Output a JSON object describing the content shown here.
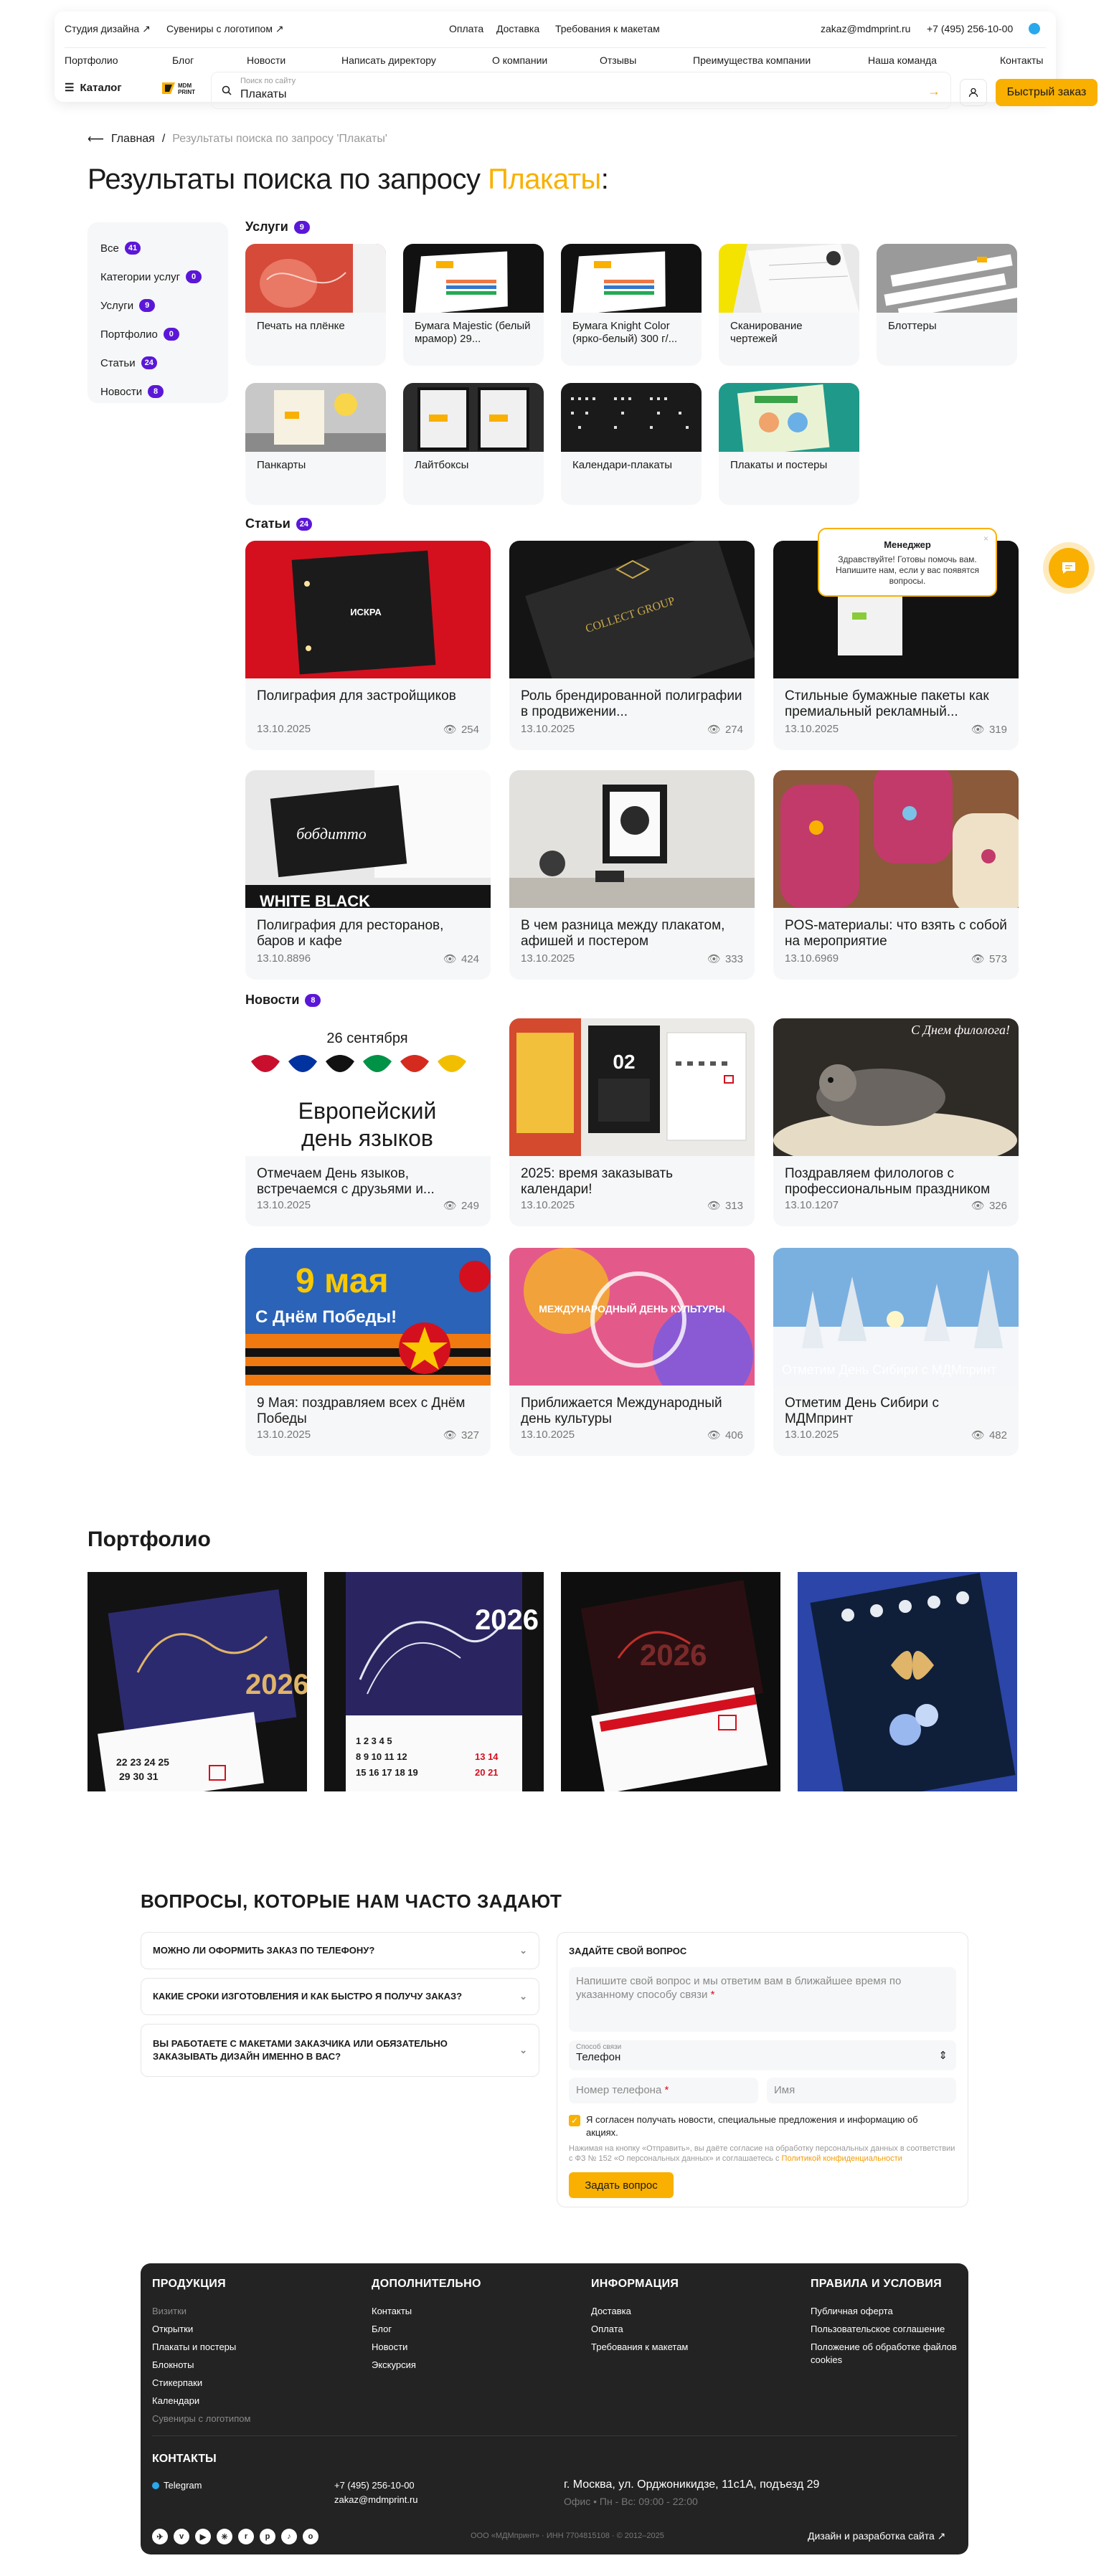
{
  "topbar": {
    "left_links": [
      "Студия дизайна ↗",
      "Сувениры с логотипом ↗"
    ],
    "center_links": [
      "Оплата",
      "Доставка",
      "Требования к макетам"
    ],
    "email": "zakaz@mdmprint.ru",
    "phone": "+7 (495) 256-10-00"
  },
  "nav": [
    "Портфолио",
    "Блог",
    "Новости",
    "Написать директору",
    "О компании",
    "Отзывы",
    "Преимущества компании",
    "Наша команда",
    "Контакты"
  ],
  "header": {
    "catalog_label": "Каталог",
    "logo_text": "MDM PRINT",
    "search_placeholder": "Поиск по сайту",
    "search_value": "Плакаты",
    "quick_order_label": "Быстрый заказ"
  },
  "breadcrumb": {
    "home": "Главная",
    "separator": "/",
    "current": "Результаты поиска по запросу 'Плакаты'"
  },
  "page_title": {
    "prefix": "Результаты поиска по запросу ",
    "query": "Плакаты",
    "suffix": ":"
  },
  "filters": [
    {
      "label": "Все",
      "count": "41"
    },
    {
      "label": "Категории услуг",
      "count": "0"
    },
    {
      "label": "Услуги",
      "count": "9"
    },
    {
      "label": "Портфолио",
      "count": "0"
    },
    {
      "label": "Статьи",
      "count": "24"
    },
    {
      "label": "Новости",
      "count": "8"
    }
  ],
  "services": {
    "title": "Услуги",
    "count": "9",
    "items": [
      {
        "label": "Печать на плёнке"
      },
      {
        "label": "Бумага Majestic (белый мрамор) 29..."
      },
      {
        "label": "Бумага Knight Color (ярко-белый) 300 г/..."
      },
      {
        "label": "Сканирование чертежей"
      },
      {
        "label": "Блоттеры"
      },
      {
        "label": "Панкарты"
      },
      {
        "label": "Лайтбоксы"
      },
      {
        "label": "Календари-плакаты"
      },
      {
        "label": "Плакаты и постеры"
      }
    ]
  },
  "articles": {
    "title": "Статьи",
    "count": "24",
    "items": [
      {
        "title": "Полиграфия для застройщиков",
        "date": "13.10.2025",
        "views": "254",
        "img_text": "ИСКРА"
      },
      {
        "title": "Роль брендированной полиграфии в продвижении...",
        "date": "13.10.2025",
        "views": "274",
        "img_text": "COLLECT GROUP"
      },
      {
        "title": "Стильные бумажные пакеты как премиальный рекламный...",
        "date": "13.10.2025",
        "views": "319",
        "img_text": ""
      },
      {
        "title": "Полиграфия для ресторанов, баров и кафе",
        "date": "13.10.8896",
        "views": "424",
        "img_text": "WHITE  BLACK"
      },
      {
        "title": "В чем разница между плакатом, афишей и постером",
        "date": "13.10.2025",
        "views": "333",
        "img_text": ""
      },
      {
        "title": "POS-материалы: что взять с собой на мероприятие",
        "date": "13.10.6969",
        "views": "573",
        "img_text": ""
      }
    ]
  },
  "news": {
    "title": "Новости",
    "count": "8",
    "items": [
      {
        "title": "Отмечаем День языков, встречаемся с друзьями и...",
        "date": "13.10.2025",
        "views": "249",
        "img_top": "26 сентября",
        "img_text": "Европейский день языков"
      },
      {
        "title": "2025: время заказывать календари!",
        "date": "13.10.2025",
        "views": "313",
        "img_top": "",
        "img_text": "02"
      },
      {
        "title": "Поздравляем филологов с профессиональным праздником",
        "date": "13.10.1207",
        "views": "326",
        "img_top": "",
        "img_text": "С Днем филолога!"
      },
      {
        "title": "9 Мая: поздравляем всех с Днём Победы",
        "date": "13.10.2025",
        "views": "327",
        "img_top": "9 мая",
        "img_text": "С Днём Победы!"
      },
      {
        "title": "Приближается Международный день культуры",
        "date": "13.10.2025",
        "views": "406",
        "img_top": "",
        "img_text": "МЕЖДУНАРОДНЫЙ ДЕНЬ КУЛЬТУРЫ"
      },
      {
        "title": "Отметим День Сибири с МДМпринт",
        "date": "13.10.2025",
        "views": "482",
        "img_top": "",
        "img_text": "Отметим День Сибири с МДМпринт"
      }
    ]
  },
  "portfolio": {
    "title": "Портфолио",
    "items": [
      {
        "year": "2026"
      },
      {
        "year": "2026"
      },
      {
        "year": "2026"
      },
      {
        "year": ""
      }
    ]
  },
  "faq": {
    "title": "ВОПРОСЫ, КОТОРЫЕ НАМ ЧАСТО ЗАДАЮТ",
    "items": [
      "МОЖНО ЛИ ОФОРМИТЬ ЗАКАЗ ПО ТЕЛЕФОНУ?",
      "КАКИЕ СРОКИ ИЗГОТОВЛЕНИЯ И КАК БЫСТРО Я ПОЛУЧУ ЗАКАЗ?",
      "ВЫ РАБОТАЕТЕ С МАКЕТАМИ ЗАКАЗЧИКА ИЛИ ОБЯЗАТЕЛЬНО ЗАКАЗЫВАТЬ ДИЗАЙН ИМЕННО В ВАС?"
    ]
  },
  "ask_form": {
    "title": "ЗАДАЙТЕ СВОЙ ВОПРОС",
    "textarea_placeholder": "Напишите свой вопрос и мы ответим вам в ближайшее время по указанному способу связи",
    "required_mark": "*",
    "contact_method_label": "Способ связи",
    "contact_method_value": "Телефон",
    "phone_placeholder": "Номер телефона",
    "name_placeholder": "Имя",
    "consent_label": "Я согласен получать новости, специальные предложения и информацию об акциях.",
    "legal_text": "Нажимая на кнопку «Отправить», вы даёте согласие на обработку персональных данных в соответствии с ФЗ № 152 «О персональных данных» и соглашаетесь с",
    "legal_link": "Политикой конфиденциальности",
    "submit_label": "Задать вопрос"
  },
  "chat": {
    "title": "Менеджер",
    "message": "Здравствуйте! Готовы помочь вам. Напишите нам, если у вас появятся вопросы."
  },
  "footer": {
    "columns": [
      {
        "title": "ПРОДУКЦИЯ",
        "items": [
          "Визитки",
          "Открытки",
          "Плакаты и постеры",
          "Блокноты",
          "Стикерпаки",
          "Календари",
          "Сувениры с логотипом"
        ]
      },
      {
        "title": "ДОПОЛНИТЕЛЬНО",
        "items": [
          "Контакты",
          "Блог",
          "Новости",
          "Экскурсия"
        ]
      },
      {
        "title": "ИНФОРМАЦИЯ",
        "items": [
          "Доставка",
          "Оплата",
          "Требования к макетам"
        ]
      },
      {
        "title": "ПРАВИЛА И УСЛОВИЯ",
        "items": [
          "Публичная оферта",
          "Пользовательское соглашение",
          "Положение об обработке файлов cookies"
        ]
      }
    ],
    "contacts_title": "КОНТАКТЫ",
    "telegram": "Telegram",
    "phone": "+7 (495) 256-10-00",
    "email": "zakaz@mdmprint.ru",
    "address": "г. Москва, ул. Орджоникидзе, 11с1А, подъезд 29",
    "hours": "Офис • Пн - Вс: 09:00 - 22:00",
    "legal": "ООО «МДМпринт» · ИНН 7704815108 · © 2012–2025",
    "dev_link": "Дизайн и разработка сайта ↗"
  },
  "colors": {
    "accent": "#f9b000",
    "badge": "#5b17d8",
    "footer_bg": "#232323"
  }
}
